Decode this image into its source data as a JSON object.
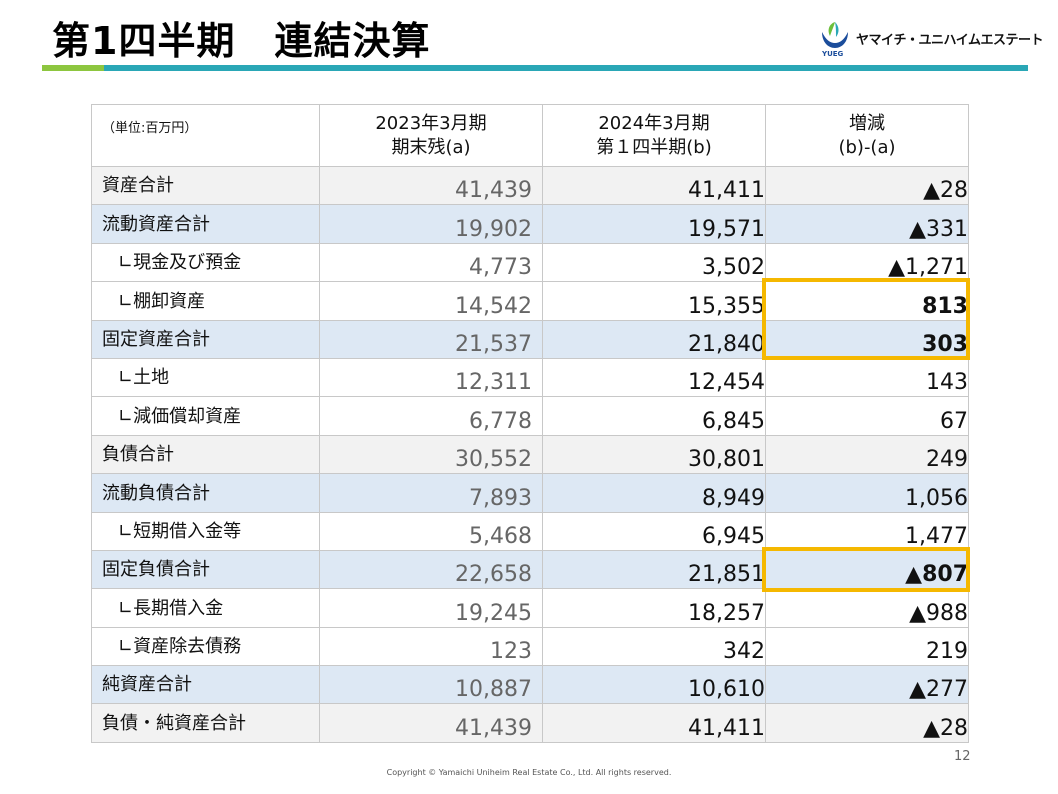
{
  "title": "第1四半期　連結決算",
  "logo": {
    "company": "ヤマイチ・ユニハイムエステート",
    "mark": "YUEG",
    "colors": {
      "blue": "#1b4d9b",
      "green": "#6cbf3b"
    }
  },
  "table": {
    "unit_label": "（単位:百万円）",
    "headers": [
      {
        "line1": "2023年3月期",
        "line2": "期末残(a)"
      },
      {
        "line1": "2024年3月期",
        "line2": "第１四半期(b)"
      },
      {
        "line1": "増減",
        "line2": "(b)-(a)"
      }
    ],
    "rows": [
      {
        "label": "資産合計",
        "sub": false,
        "style": "gray",
        "a": "41,439",
        "b": "41,411",
        "diff": "▲28",
        "bold": false
      },
      {
        "label": "流動資産合計",
        "sub": false,
        "style": "blue",
        "a": "19,902",
        "b": "19,571",
        "diff": "▲331",
        "bold": false
      },
      {
        "label": "∟現金及び預金",
        "sub": true,
        "style": "white",
        "a": "4,773",
        "b": "3,502",
        "diff": "▲1,271",
        "bold": false
      },
      {
        "label": "∟棚卸資産",
        "sub": true,
        "style": "white",
        "a": "14,542",
        "b": "15,355",
        "diff": "813",
        "bold": true
      },
      {
        "label": "固定資産合計",
        "sub": false,
        "style": "blue",
        "a": "21,537",
        "b": "21,840",
        "diff": "303",
        "bold": true
      },
      {
        "label": "∟土地",
        "sub": true,
        "style": "white",
        "a": "12,311",
        "b": "12,454",
        "diff": "143",
        "bold": false
      },
      {
        "label": "∟減価償却資産",
        "sub": true,
        "style": "white",
        "a": "6,778",
        "b": "6,845",
        "diff": "67",
        "bold": false
      },
      {
        "label": "負債合計",
        "sub": false,
        "style": "gray",
        "a": "30,552",
        "b": "30,801",
        "diff": "249",
        "bold": false
      },
      {
        "label": "流動負債合計",
        "sub": false,
        "style": "blue",
        "a": "7,893",
        "b": "8,949",
        "diff": "1,056",
        "bold": false
      },
      {
        "label": "∟短期借入金等",
        "sub": true,
        "style": "white",
        "a": "5,468",
        "b": "6,945",
        "diff": "1,477",
        "bold": false
      },
      {
        "label": "固定負債合計",
        "sub": false,
        "style": "blue",
        "a": "22,658",
        "b": "21,851",
        "diff": "▲807",
        "bold": true
      },
      {
        "label": "∟長期借入金",
        "sub": true,
        "style": "white",
        "a": "19,245",
        "b": "18,257",
        "diff": "▲988",
        "bold": false
      },
      {
        "label": "∟資産除去債務",
        "sub": true,
        "style": "white",
        "a": "123",
        "b": "342",
        "diff": "219",
        "bold": false
      },
      {
        "label": "純資産合計",
        "sub": false,
        "style": "blue",
        "a": "10,887",
        "b": "10,610",
        "diff": "▲277",
        "bold": false
      },
      {
        "label": "負債・純資産合計",
        "sub": false,
        "style": "gray",
        "a": "41,439",
        "b": "41,411",
        "diff": "▲28",
        "bold": false
      }
    ]
  },
  "highlight_color": "#f5b800",
  "page_number": "12",
  "copyright": "Copyright © Yamaichi Uniheim Real Estate Co., Ltd. All rights reserved."
}
